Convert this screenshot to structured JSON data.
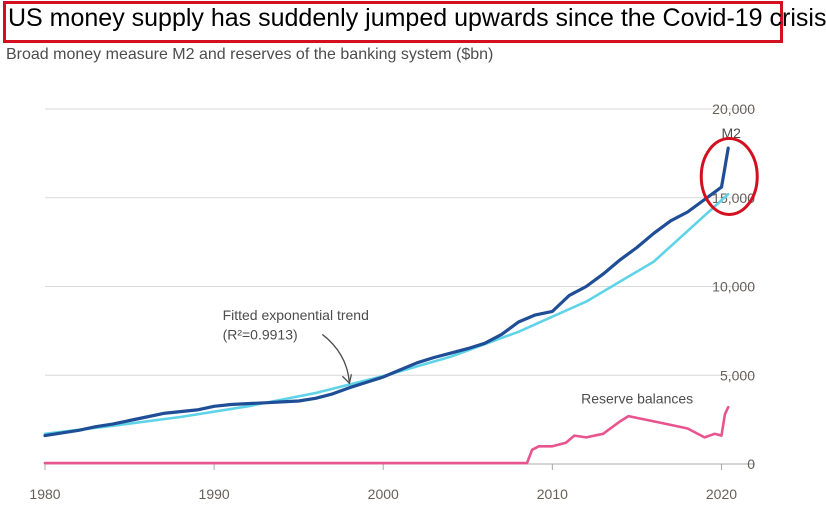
{
  "header": {
    "title": "US money supply has suddenly jumped upwards since the Covid-19 crisis",
    "subtitle": "Broad money measure M2 and reserves of the banking system ($bn)"
  },
  "colors": {
    "m2": "#1f4e96",
    "trend": "#5fd3e8",
    "reserves": "#e8548f",
    "highlight": "#d3101f",
    "grid": "#d9d9d9",
    "axis": "#a8a8a8"
  },
  "chart_data": {
    "type": "line",
    "title": "US money supply has suddenly jumped upwards since the Covid-19 crisis",
    "subtitle": "Broad money measure M2 and reserves of the banking system ($bn)",
    "xlim": [
      1980,
      2020.8
    ],
    "ylim": [
      0,
      20000
    ],
    "x_ticks": [
      1980,
      1990,
      2000,
      2010,
      2020
    ],
    "y_ticks": [
      0,
      5000,
      10000,
      15000,
      20000
    ],
    "y_tick_labels": [
      "0",
      "5,000",
      "10,000",
      "15,000",
      "20,000"
    ],
    "grid": true,
    "series": [
      {
        "name": "M2",
        "x": [
          1980,
          1981,
          1982,
          1983,
          1984,
          1985,
          1986,
          1987,
          1988,
          1989,
          1990,
          1991,
          1992,
          1993,
          1994,
          1995,
          1996,
          1997,
          1998,
          1999,
          2000,
          2001,
          2002,
          2003,
          2004,
          2005,
          2006,
          2007,
          2008,
          2009,
          2010,
          2011,
          2012,
          2013,
          2014,
          2015,
          2016,
          2017,
          2018,
          2019,
          2020,
          2020.2,
          2020.4
        ],
        "y": [
          1600,
          1750,
          1900,
          2100,
          2250,
          2450,
          2650,
          2850,
          2950,
          3050,
          3250,
          3350,
          3400,
          3450,
          3500,
          3550,
          3700,
          3950,
          4300,
          4600,
          4900,
          5300,
          5700,
          6000,
          6250,
          6500,
          6800,
          7300,
          8000,
          8400,
          8600,
          9500,
          10000,
          10700,
          11500,
          12200,
          13000,
          13700,
          14200,
          14900,
          15600,
          16700,
          17800
        ]
      },
      {
        "name": "Fitted exponential trend",
        "label_lines": [
          "Fitted exponential trend",
          "(R²=0.9913)"
        ],
        "x": [
          1980,
          1984,
          1988,
          1992,
          1996,
          2000,
          2004,
          2008,
          2012,
          2016,
          2020.4
        ],
        "y": [
          1700,
          2150,
          2650,
          3250,
          4000,
          4950,
          6050,
          7450,
          9150,
          11400,
          15200
        ]
      },
      {
        "name": "Reserve balances",
        "x": [
          1980,
          1990,
          2000,
          2008.5,
          2008.8,
          2009.2,
          2010,
          2010.8,
          2011.3,
          2012,
          2013,
          2014,
          2014.5,
          2015,
          2016,
          2017,
          2018,
          2019,
          2019.6,
          2020,
          2020.2,
          2020.4
        ],
        "y": [
          50,
          50,
          50,
          50,
          800,
          1000,
          1000,
          1200,
          1600,
          1500,
          1700,
          2400,
          2700,
          2600,
          2400,
          2200,
          2000,
          1500,
          1700,
          1600,
          2800,
          3200
        ]
      }
    ]
  }
}
